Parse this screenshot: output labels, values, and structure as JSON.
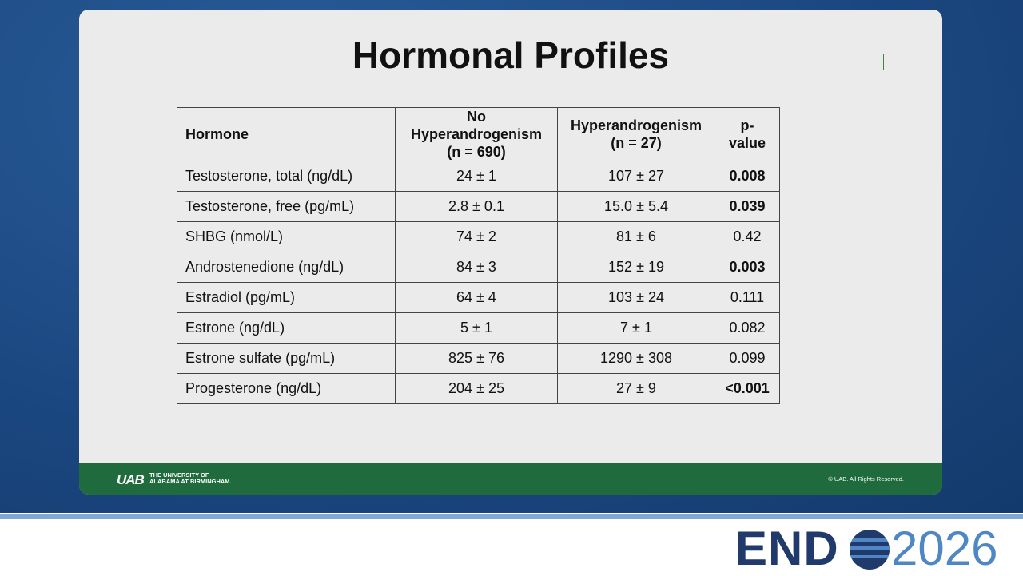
{
  "header": {
    "title": "Hormonal Profiles"
  },
  "table": {
    "columns": [
      [
        "Hormone"
      ],
      [
        "No Hyperandrogenism",
        "(n = 690)"
      ],
      [
        "Hyperandrogenism",
        "(n = 27)"
      ],
      [
        "p-value"
      ]
    ],
    "rows": [
      {
        "cells": [
          "Testosterone, total (ng/dL)",
          "24 ± 1",
          "107 ± 27",
          "0.008"
        ],
        "p_bold": true
      },
      {
        "cells": [
          "Testosterone, free (pg/mL)",
          "2.8 ± 0.1",
          "15.0 ± 5.4",
          "0.039"
        ],
        "p_bold": true
      },
      {
        "cells": [
          "SHBG (nmol/L)",
          "74 ± 2",
          "81 ± 6",
          "0.42"
        ],
        "p_bold": false
      },
      {
        "cells": [
          "Androstenedione (ng/dL)",
          "84 ± 3",
          "152 ± 19",
          "0.003"
        ],
        "p_bold": true
      },
      {
        "cells": [
          "Estradiol (pg/mL)",
          "64 ± 4",
          "103 ± 24",
          "0.111"
        ],
        "p_bold": false
      },
      {
        "cells": [
          "Estrone (ng/dL)",
          "5 ± 1",
          "7 ± 1",
          "0.082"
        ],
        "p_bold": false
      },
      {
        "cells": [
          "Estrone sulfate (pg/mL)",
          "825 ± 76",
          "1290 ± 308",
          "0.099"
        ],
        "p_bold": false
      },
      {
        "cells": [
          "Progesterone (ng/dL)",
          "204 ± 25",
          "27 ± 9",
          "<0.001"
        ],
        "p_bold": true
      }
    ]
  },
  "footer": {
    "logo": "UAB",
    "university": [
      "THE UNIVERSITY OF",
      "ALABAMA AT BIRMINGHAM."
    ],
    "copyright": "© UAB. All Rights Reserved."
  },
  "brand": {
    "name": "END",
    "year": "2026"
  }
}
